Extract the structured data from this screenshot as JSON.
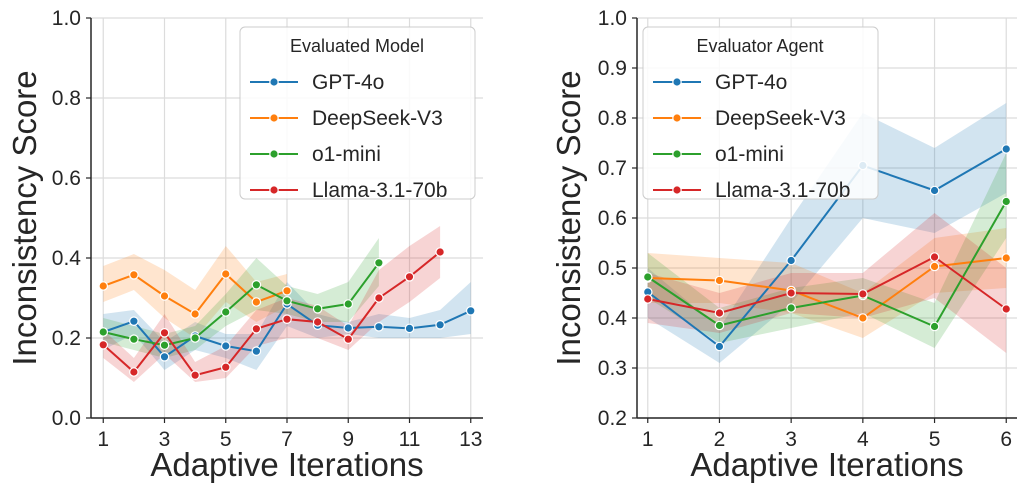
{
  "chart_data": [
    {
      "type": "line",
      "xlabel": "Adaptive Iterations",
      "ylabel": "Inconsistency Score",
      "xlim": [
        0.6,
        13.4
      ],
      "ylim": [
        0.0,
        1.0
      ],
      "xticks": [
        1,
        3,
        5,
        7,
        9,
        11,
        13
      ],
      "yticks": [
        0.0,
        0.2,
        0.4,
        0.6,
        0.8,
        1.0
      ],
      "ytick_labels": [
        "0.0",
        "0.2",
        "0.4",
        "0.6",
        "0.8",
        "1.0"
      ],
      "grid": true,
      "legend": {
        "title": "Evaluated Model",
        "placement": "top-right"
      },
      "series": [
        {
          "name": "GPT-4o",
          "color": "#1f77b4",
          "x": [
            1,
            2,
            3,
            4,
            5,
            6,
            7,
            8,
            9,
            10,
            11,
            12,
            13
          ],
          "y": [
            0.215,
            0.242,
            0.153,
            0.205,
            0.18,
            0.167,
            0.285,
            0.232,
            0.225,
            0.228,
            0.224,
            0.233,
            0.268
          ],
          "lower": [
            0.17,
            0.21,
            0.12,
            0.17,
            0.15,
            0.12,
            0.23,
            0.2,
            0.21,
            0.2,
            0.2,
            0.2,
            0.21
          ],
          "upper": [
            0.26,
            0.27,
            0.19,
            0.24,
            0.21,
            0.21,
            0.34,
            0.26,
            0.24,
            0.26,
            0.25,
            0.27,
            0.34
          ]
        },
        {
          "name": "DeepSeek-V3",
          "color": "#ff7f0e",
          "x": [
            1,
            2,
            3,
            4,
            5,
            6,
            7
          ],
          "y": [
            0.33,
            0.358,
            0.305,
            0.26,
            0.36,
            0.29,
            0.318
          ],
          "lower": [
            0.29,
            0.32,
            0.25,
            0.2,
            0.29,
            0.24,
            0.28
          ],
          "upper": [
            0.38,
            0.41,
            0.37,
            0.32,
            0.43,
            0.34,
            0.36
          ]
        },
        {
          "name": "o1-mini",
          "color": "#2ca02c",
          "x": [
            1,
            2,
            3,
            4,
            5,
            6,
            7,
            8,
            9,
            10
          ],
          "y": [
            0.215,
            0.197,
            0.182,
            0.2,
            0.265,
            0.333,
            0.293,
            0.273,
            0.285,
            0.388
          ],
          "lower": [
            0.19,
            0.17,
            0.15,
            0.17,
            0.23,
            0.27,
            0.26,
            0.24,
            0.24,
            0.33
          ],
          "upper": [
            0.25,
            0.23,
            0.21,
            0.23,
            0.31,
            0.4,
            0.33,
            0.31,
            0.34,
            0.45
          ]
        },
        {
          "name": "Llama-3.1-70b",
          "color": "#d62728",
          "x": [
            1,
            2,
            3,
            4,
            5,
            6,
            7,
            8,
            9,
            10,
            11,
            12
          ],
          "y": [
            0.183,
            0.115,
            0.213,
            0.107,
            0.127,
            0.223,
            0.247,
            0.24,
            0.197,
            0.3,
            0.353,
            0.415
          ],
          "lower": [
            0.15,
            0.09,
            0.16,
            0.09,
            0.1,
            0.18,
            0.2,
            0.2,
            0.17,
            0.24,
            0.29,
            0.35
          ],
          "upper": [
            0.22,
            0.15,
            0.26,
            0.14,
            0.18,
            0.27,
            0.3,
            0.28,
            0.23,
            0.37,
            0.43,
            0.48
          ]
        }
      ]
    },
    {
      "type": "line",
      "xlabel": "Adaptive Iterations",
      "ylabel": "Inconsistency Score",
      "xlim": [
        0.85,
        6.15
      ],
      "ylim": [
        0.2,
        1.0
      ],
      "xticks": [
        1,
        2,
        3,
        4,
        5,
        6
      ],
      "yticks": [
        0.2,
        0.3,
        0.4,
        0.5,
        0.6,
        0.7,
        0.8,
        0.9,
        1.0
      ],
      "ytick_labels": [
        "0.2",
        "0.3",
        "0.4",
        "0.5",
        "0.6",
        "0.7",
        "0.8",
        "0.9",
        "1.0"
      ],
      "grid": true,
      "legend": {
        "title": "Evaluator Agent",
        "placement": "top-left"
      },
      "series": [
        {
          "name": "GPT-4o",
          "color": "#1f77b4",
          "x": [
            1,
            2,
            3,
            4,
            5,
            6
          ],
          "y": [
            0.452,
            0.343,
            0.515,
            0.705,
            0.655,
            0.738
          ],
          "lower": [
            0.4,
            0.31,
            0.43,
            0.6,
            0.57,
            0.65
          ],
          "upper": [
            0.5,
            0.38,
            0.6,
            0.81,
            0.74,
            0.83
          ]
        },
        {
          "name": "DeepSeek-V3",
          "color": "#ff7f0e",
          "x": [
            1,
            2,
            3,
            4,
            5,
            6
          ],
          "y": [
            0.48,
            0.475,
            0.455,
            0.4,
            0.503,
            0.52
          ],
          "lower": [
            0.43,
            0.43,
            0.41,
            0.36,
            0.45,
            0.46
          ],
          "upper": [
            0.53,
            0.52,
            0.51,
            0.45,
            0.56,
            0.58
          ]
        },
        {
          "name": "o1-mini",
          "color": "#2ca02c",
          "x": [
            1,
            2,
            3,
            4,
            5,
            6
          ],
          "y": [
            0.482,
            0.385,
            0.42,
            0.445,
            0.383,
            0.633
          ],
          "lower": [
            0.44,
            0.35,
            0.38,
            0.41,
            0.34,
            0.56
          ],
          "upper": [
            0.53,
            0.42,
            0.46,
            0.48,
            0.43,
            0.73
          ]
        },
        {
          "name": "Llama-3.1-70b",
          "color": "#d62728",
          "x": [
            1,
            2,
            3,
            4,
            5,
            6
          ],
          "y": [
            0.438,
            0.41,
            0.45,
            0.448,
            0.522,
            0.418
          ],
          "lower": [
            0.39,
            0.37,
            0.41,
            0.4,
            0.44,
            0.33
          ],
          "upper": [
            0.49,
            0.45,
            0.49,
            0.49,
            0.61,
            0.5
          ]
        }
      ]
    }
  ]
}
